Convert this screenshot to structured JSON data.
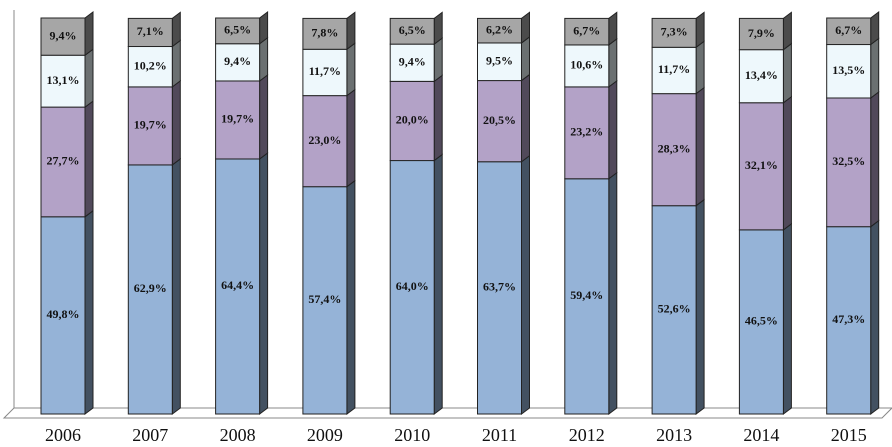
{
  "chart_data": {
    "type": "stacked-bar",
    "categories": [
      "2006",
      "2007",
      "2008",
      "2009",
      "2010",
      "2011",
      "2012",
      "2013",
      "2014",
      "2015"
    ],
    "ylim": [
      0,
      100
    ],
    "series": [
      {
        "color": "#95b3d7",
        "values": [
          49.8,
          62.9,
          64.4,
          57.4,
          64.0,
          63.7,
          59.4,
          52.6,
          46.5,
          47.3
        ],
        "value_labels": [
          "49,8%",
          "62,9%",
          "64,4%",
          "57,4%",
          "64,0%",
          "63,7%",
          "59,4%",
          "52,6%",
          "46,5%",
          "47,3%"
        ]
      },
      {
        "color": "#b3a2c7",
        "values": [
          27.7,
          19.7,
          19.7,
          23.0,
          20.0,
          20.5,
          23.2,
          28.3,
          32.1,
          32.5
        ],
        "value_labels": [
          "27,7%",
          "19,7%",
          "19,7%",
          "23,0%",
          "20,0%",
          "20,5%",
          "23,2%",
          "28,3%",
          "32,1%",
          "32,5%"
        ]
      },
      {
        "color": "#eef8fc",
        "values": [
          13.1,
          10.2,
          9.4,
          11.7,
          9.4,
          9.5,
          10.6,
          11.7,
          13.4,
          13.5
        ],
        "value_labels": [
          "13,1%",
          "10,2%",
          "9,4%",
          "11,7%",
          "9,4%",
          "9,5%",
          "10,6%",
          "11,7%",
          "13,4%",
          "13,5%"
        ]
      },
      {
        "color": "#a6a6a6",
        "values": [
          9.4,
          7.1,
          6.5,
          7.8,
          6.5,
          6.2,
          6.7,
          7.3,
          7.9,
          6.7
        ],
        "value_labels": [
          "9,4%",
          "7,1%",
          "6,5%",
          "7,8%",
          "6,5%",
          "6,2%",
          "6,7%",
          "7,3%",
          "7,9%",
          "6,7%"
        ]
      }
    ]
  }
}
